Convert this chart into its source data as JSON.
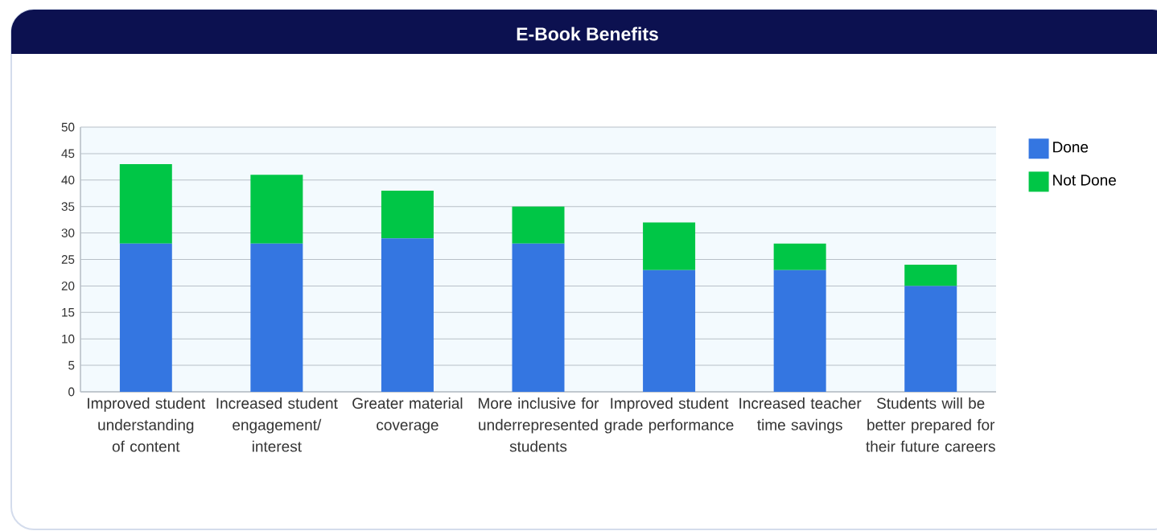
{
  "chart_data": {
    "type": "bar",
    "title": "E-Book Benefits",
    "categories": [
      "Improved student understanding of content",
      "Increased student engagement/ interest",
      "Greater material coverage",
      "More inclusive for underrepresented students",
      "Improved student grade performance",
      "Increased teacher time savings",
      "Students will be better prepared for their future careers"
    ],
    "series": [
      {
        "name": "Done",
        "color": "#3476e1",
        "values": [
          28,
          28,
          29,
          28,
          23,
          23,
          20
        ]
      },
      {
        "name": "Not Done",
        "color": "#00c646",
        "values": [
          15,
          13,
          9,
          7,
          9,
          5,
          4
        ]
      }
    ],
    "stacked": true,
    "ylim": [
      0,
      50
    ],
    "yticks": [
      0,
      5,
      10,
      15,
      20,
      25,
      30,
      35,
      40,
      45,
      50
    ],
    "grid": "y",
    "legend": "top right"
  }
}
